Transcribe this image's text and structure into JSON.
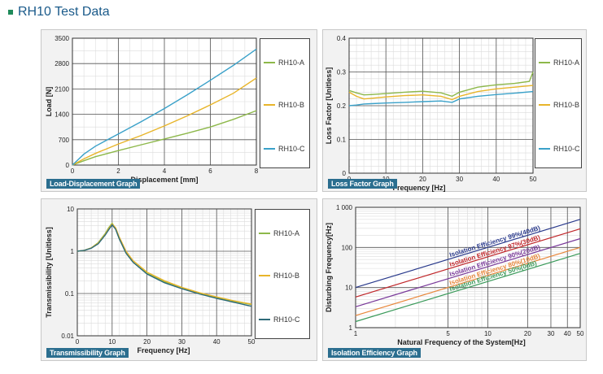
{
  "page": {
    "title": "RH10 Test Data"
  },
  "colors": {
    "A": "#8db84a",
    "B": "#e8b52a",
    "C": "#3aa1c9",
    "C_dark": "#2e6a78"
  },
  "charts": [
    {
      "id": "ld",
      "tag": "Load-Displacement Graph",
      "chart_data": {
        "type": "line",
        "xlabel": "Displacement [mm]",
        "ylabel": "Load [N]",
        "xlim": [
          0,
          8
        ],
        "ylim": [
          0,
          3500
        ],
        "xticks": [
          "0",
          "2",
          "4",
          "6",
          "8"
        ],
        "yticks": [
          "0",
          "700",
          "1400",
          "2100",
          "2800",
          "3500"
        ],
        "grid": true,
        "legend": "right",
        "series": [
          {
            "name": "RH10-A",
            "x": [
              0,
              0.5,
              1,
              2,
              3,
              4,
              5,
              6,
              7,
              8
            ],
            "y": [
              0,
              120,
              230,
              400,
              560,
              720,
              880,
              1050,
              1260,
              1500
            ]
          },
          {
            "name": "RH10-B",
            "x": [
              0,
              0.5,
              1,
              2,
              3,
              4,
              5,
              6,
              7,
              8
            ],
            "y": [
              0,
              170,
              320,
              580,
              820,
              1080,
              1360,
              1660,
              1980,
              2400
            ]
          },
          {
            "name": "RH10-C",
            "x": [
              0,
              0.5,
              1,
              2,
              3,
              4,
              5,
              6,
              7,
              8
            ],
            "y": [
              0,
              300,
              520,
              860,
              1200,
              1560,
              1940,
              2340,
              2750,
              3200
            ]
          }
        ]
      }
    },
    {
      "id": "lf",
      "tag": "Loss Factor Graph",
      "chart_data": {
        "type": "line",
        "xlabel": "Frequency [Hz]",
        "ylabel": "Loss Factor [Unitless]",
        "xlim": [
          0,
          50
        ],
        "ylim": [
          0,
          0.4
        ],
        "xticks": [
          "0",
          "10",
          "20",
          "30",
          "40",
          "50"
        ],
        "yticks": [
          "0",
          "0.1",
          "0.2",
          "0.3",
          "0.4"
        ],
        "grid": true,
        "legend": "right",
        "series": [
          {
            "name": "RH10-A",
            "x": [
              0,
              2,
              4,
              6,
              10,
              15,
              20,
              25,
              28,
              30,
              35,
              40,
              45,
              49,
              50
            ],
            "y": [
              0.245,
              0.238,
              0.232,
              0.233,
              0.236,
              0.24,
              0.243,
              0.238,
              0.228,
              0.24,
              0.255,
              0.262,
              0.266,
              0.272,
              0.3
            ]
          },
          {
            "name": "RH10-B",
            "x": [
              0,
              2,
              4,
              6,
              10,
              15,
              20,
              25,
              28,
              30,
              35,
              40,
              45,
              50
            ],
            "y": [
              0.24,
              0.228,
              0.22,
              0.222,
              0.226,
              0.23,
              0.232,
              0.228,
              0.218,
              0.228,
              0.242,
              0.25,
              0.255,
              0.26
            ]
          },
          {
            "name": "RH10-C",
            "x": [
              0,
              2,
              4,
              6,
              10,
              15,
              20,
              25,
              28,
              30,
              35,
              40,
              45,
              50
            ],
            "y": [
              0.2,
              0.202,
              0.205,
              0.206,
              0.208,
              0.21,
              0.212,
              0.214,
              0.21,
              0.22,
              0.228,
              0.233,
              0.237,
              0.242
            ]
          }
        ]
      }
    },
    {
      "id": "tr",
      "tag": "Transmissibility Graph",
      "chart_data": {
        "type": "line",
        "xlabel": "Frequency [Hz]",
        "ylabel": "Transmissibility [Unitless]",
        "xlim": [
          0,
          50
        ],
        "ylim": [
          0.01,
          10
        ],
        "yscale": "log",
        "xticks": [
          "0",
          "10",
          "20",
          "30",
          "40",
          "50"
        ],
        "yticks": [
          "0.01",
          "0.1",
          "1",
          "10"
        ],
        "grid": true,
        "legend": "right",
        "series": [
          {
            "name": "RH10-A",
            "x": [
              0,
              2,
              4,
              6,
              8,
              9,
              10,
              11,
              12,
              14,
              16,
              20,
              25,
              30,
              35,
              40,
              45,
              50
            ],
            "y": [
              1,
              1.05,
              1.2,
              1.6,
              2.6,
              3.6,
              4.6,
              3.4,
              2.0,
              0.9,
              0.55,
              0.3,
              0.19,
              0.135,
              0.1,
              0.08,
              0.065,
              0.055
            ]
          },
          {
            "name": "RH10-B",
            "x": [
              0,
              2,
              4,
              6,
              8,
              9,
              10,
              11,
              12,
              14,
              16,
              20,
              25,
              30,
              35,
              40,
              45,
              50
            ],
            "y": [
              1,
              1.05,
              1.2,
              1.55,
              2.5,
              3.4,
              4.4,
              3.6,
              2.2,
              1.0,
              0.6,
              0.32,
              0.2,
              0.14,
              0.105,
              0.083,
              0.067,
              0.056
            ]
          },
          {
            "name": "RH10-C",
            "x": [
              0,
              2,
              4,
              6,
              8,
              9,
              10,
              11,
              12,
              14,
              16,
              20,
              25,
              30,
              35,
              40,
              45,
              50
            ],
            "y": [
              1,
              1.05,
              1.18,
              1.5,
              2.4,
              3.2,
              4.2,
              3.3,
              2.0,
              0.9,
              0.55,
              0.29,
              0.18,
              0.13,
              0.098,
              0.077,
              0.062,
              0.05
            ]
          }
        ]
      }
    },
    {
      "id": "ie",
      "tag": "Isolation Efficiency Graph",
      "chart_data": {
        "type": "line",
        "xlabel": "Natural Frequency of the System[Hz]",
        "ylabel": "Disturbing Frequency[Hz]",
        "xlim": [
          1,
          50
        ],
        "ylim": [
          1,
          1000
        ],
        "xscale": "log",
        "yscale": "log",
        "xticks": [
          "1",
          "5",
          "10",
          "20",
          "30",
          "40",
          "50"
        ],
        "yticks": [
          "1",
          "10",
          "100",
          "1 000"
        ],
        "grid": true,
        "series": [
          {
            "name": "Isolation Efficiency 99%(40dB)",
            "color": "#2a3a8c",
            "x": [
              1,
              50
            ],
            "y": [
              10.05,
              502
            ]
          },
          {
            "name": "Isolation Efficiency 97%(30dB)",
            "color": "#c0262a",
            "x": [
              1,
              50
            ],
            "y": [
              5.8,
              291
            ]
          },
          {
            "name": "Isolation Efficiency 90%(20dB)",
            "color": "#7a3a9a",
            "x": [
              1,
              50
            ],
            "y": [
              3.32,
              166
            ]
          },
          {
            "name": "Isolation Efficiency 80%(10dB)",
            "color": "#e8863a",
            "x": [
              1,
              50
            ],
            "y": [
              2.0,
              100
            ]
          },
          {
            "name": "Isolation Efficiency 50%(0dB)",
            "color": "#3a9a5a",
            "x": [
              1,
              50
            ],
            "y": [
              1.42,
              71
            ]
          }
        ]
      }
    }
  ]
}
